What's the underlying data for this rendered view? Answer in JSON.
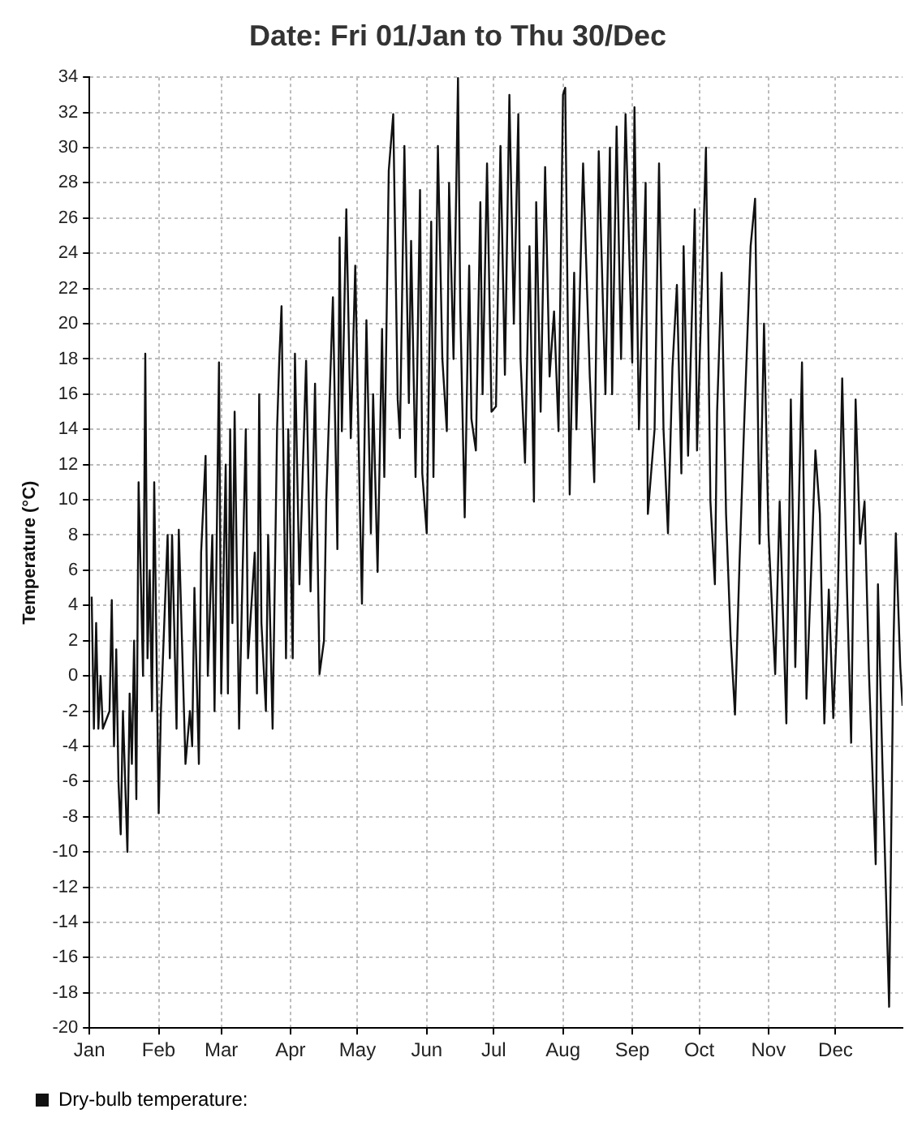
{
  "chart_data": {
    "type": "line",
    "title": "Date: Fri 01/Jan to Thu 30/Dec",
    "ylabel": "Temperature (°C)",
    "x": [
      "--01-02",
      "--01-03",
      "--01-04",
      "--01-05",
      "--01-06",
      "--01-07",
      "--01-10",
      "--01-11",
      "--01-12",
      "--01-13",
      "--01-14",
      "--01-15",
      "--01-16",
      "--01-18",
      "--01-19",
      "--01-20",
      "--01-21",
      "--01-22",
      "--01-23",
      "--01-25",
      "--01-26",
      "--01-27",
      "--01-28",
      "--01-29",
      "--01-30",
      "--02-01",
      "--02-02",
      "--02-05",
      "--02-06",
      "--02-07",
      "--02-09",
      "--02-10",
      "--02-13",
      "--02-15",
      "--02-16",
      "--02-17",
      "--02-19",
      "--02-20",
      "--02-22",
      "--02-23",
      "--02-25",
      "--02-26",
      "--02-28",
      "--03-01",
      "--03-03",
      "--03-04",
      "--03-05",
      "--03-06",
      "--03-07",
      "--03-09",
      "--03-12",
      "--03-13",
      "--03-16",
      "--03-17",
      "--03-18",
      "--03-19",
      "--03-21",
      "--03-22",
      "--03-24",
      "--03-26",
      "--03-27",
      "--03-28",
      "--03-30",
      "--03-31",
      "--04-02",
      "--04-03",
      "--04-05",
      "--04-08",
      "--04-10",
      "--04-12",
      "--04-14",
      "--04-16",
      "--04-17",
      "--04-20",
      "--04-22",
      "--04-23",
      "--04-24",
      "--04-26",
      "--04-28",
      "--04-30",
      "--05-02",
      "--05-03",
      "--05-05",
      "--05-07",
      "--05-08",
      "--05-10",
      "--05-12",
      "--05-13",
      "--05-15",
      "--05-17",
      "--05-19",
      "--05-20",
      "--05-22",
      "--05-24",
      "--05-25",
      "--05-27",
      "--05-29",
      "--05-30",
      "--06-01",
      "--06-03",
      "--06-04",
      "--06-06",
      "--06-08",
      "--06-10",
      "--06-11",
      "--06-13",
      "--06-15",
      "--06-16",
      "--06-18",
      "--06-20",
      "--06-21",
      "--06-23",
      "--06-25",
      "--06-26",
      "--06-28",
      "--06-30",
      "--07-02",
      "--07-04",
      "--07-06",
      "--07-08",
      "--07-10",
      "--07-12",
      "--07-13",
      "--07-15",
      "--07-17",
      "--07-19",
      "--07-20",
      "--07-22",
      "--07-24",
      "--07-26",
      "--07-28",
      "--07-30",
      "--08-01",
      "--08-02",
      "--08-04",
      "--08-06",
      "--08-07",
      "--08-10",
      "--08-13",
      "--08-15",
      "--08-17",
      "--08-20",
      "--08-22",
      "--08-23",
      "--08-25",
      "--08-27",
      "--08-29",
      "--09-01",
      "--09-02",
      "--09-04",
      "--09-07",
      "--09-08",
      "--09-11",
      "--09-13",
      "--09-15",
      "--09-17",
      "--09-19",
      "--09-21",
      "--09-23",
      "--09-24",
      "--09-26",
      "--09-29",
      "--09-30",
      "--10-04",
      "--10-06",
      "--10-08",
      "--10-09",
      "--10-11",
      "--10-13",
      "--10-15",
      "--10-17",
      "--10-19",
      "--10-21",
      "--10-24",
      "--10-26",
      "--10-28",
      "--10-30",
      "--11-01",
      "--11-04",
      "--11-06",
      "--11-09",
      "--11-11",
      "--11-13",
      "--11-16",
      "--11-18",
      "--11-20",
      "--11-22",
      "--11-24",
      "--11-26",
      "--11-28",
      "--11-30",
      "--12-02",
      "--12-04",
      "--12-06",
      "--12-08",
      "--12-10",
      "--12-12",
      "--12-14",
      "--12-16",
      "--12-19",
      "--12-20",
      "--12-22",
      "--12-23",
      "--12-25",
      "--12-27",
      "--12-28",
      "--12-30",
      "--12-31"
    ],
    "series": [
      {
        "name": "Dry-bulb temperature:",
        "color": "#111111",
        "values": [
          4.5,
          -3,
          3,
          -3,
          0,
          -3,
          -2,
          4.3,
          -4,
          1.5,
          -6,
          -9,
          -2,
          -10,
          -1,
          -5,
          2,
          -7,
          11,
          0,
          18.3,
          1,
          6,
          -2,
          11,
          -7.8,
          -2,
          8,
          1,
          8,
          -3,
          8.3,
          -5,
          -2,
          -4,
          5,
          -5,
          7,
          12.5,
          0,
          8,
          -2,
          17.8,
          -1,
          12,
          -1,
          14,
          3,
          15,
          -3,
          14,
          1,
          7,
          -1,
          16,
          3,
          -2,
          8,
          -3,
          14,
          18,
          21,
          1,
          14,
          1,
          18.3,
          5.2,
          17.9,
          4.8,
          16.6,
          0.1,
          2,
          9.9,
          21.5,
          7.2,
          24.9,
          13.9,
          26.5,
          13.5,
          23.3,
          10,
          4.1,
          20.2,
          8.1,
          16,
          5.9,
          19.7,
          11.3,
          28.7,
          31.9,
          15.7,
          13.5,
          30.1,
          15.5,
          24.7,
          11.3,
          27.6,
          11.5,
          8.1,
          25.8,
          11.3,
          30.1,
          18,
          13.9,
          28,
          18,
          34,
          21,
          9,
          23.3,
          14.6,
          12.8,
          26.9,
          16,
          29.1,
          15,
          15.3,
          30.1,
          17.1,
          33,
          20,
          31.9,
          18,
          12.1,
          24.4,
          9.9,
          26.9,
          15,
          28.9,
          17,
          20.7,
          13.9,
          33,
          33.4,
          10.3,
          22.9,
          14,
          29.1,
          17,
          11,
          29.8,
          16,
          30,
          16,
          31.2,
          18,
          31.9,
          17.8,
          32.3,
          14,
          28,
          9.2,
          14,
          29.1,
          14,
          8.1,
          17.5,
          22.2,
          11.5,
          24.4,
          12.5,
          26.5,
          12.8,
          30,
          9.9,
          5.2,
          15,
          22.9,
          9.2,
          2.3,
          -2.2,
          6.3,
          13.9,
          24.4,
          27.1,
          7.5,
          20,
          8.1,
          0.1,
          9.9,
          -2.7,
          15.7,
          0.5,
          17.8,
          -1.3,
          5.6,
          12.8,
          9.2,
          -2.7,
          4.9,
          -2.4,
          4.2,
          16.9,
          5.6,
          -3.8,
          15.7,
          7.5,
          9.9,
          0.1,
          -10.7,
          5.2,
          -5,
          -9.6,
          -18.8,
          2,
          8.1,
          0.5,
          -1.7
        ]
      }
    ],
    "xlim": [
      "--01-01",
      "--12-31"
    ],
    "xticks": [
      {
        "value": "--01-01",
        "label": "Jan"
      },
      {
        "value": "--02-01",
        "label": "Feb"
      },
      {
        "value": "--03-01",
        "label": "Mar"
      },
      {
        "value": "--04-01",
        "label": "Apr"
      },
      {
        "value": "--05-01",
        "label": "May"
      },
      {
        "value": "--06-01",
        "label": "Jun"
      },
      {
        "value": "--07-01",
        "label": "Jul"
      },
      {
        "value": "--08-01",
        "label": "Aug"
      },
      {
        "value": "--09-01",
        "label": "Sep"
      },
      {
        "value": "--10-01",
        "label": "Oct"
      },
      {
        "value": "--11-01",
        "label": "Nov"
      },
      {
        "value": "--12-01",
        "label": "Dec"
      }
    ],
    "ylim": [
      -20,
      34
    ],
    "yticks": [
      -20,
      -18,
      -16,
      -14,
      -12,
      -10,
      -8,
      -6,
      -4,
      -2,
      0,
      2,
      4,
      6,
      8,
      10,
      12,
      14,
      16,
      18,
      20,
      22,
      24,
      26,
      28,
      30,
      32,
      34
    ],
    "grid": true,
    "legend": "bottom left",
    "marker": "none",
    "line_style": "solid"
  }
}
